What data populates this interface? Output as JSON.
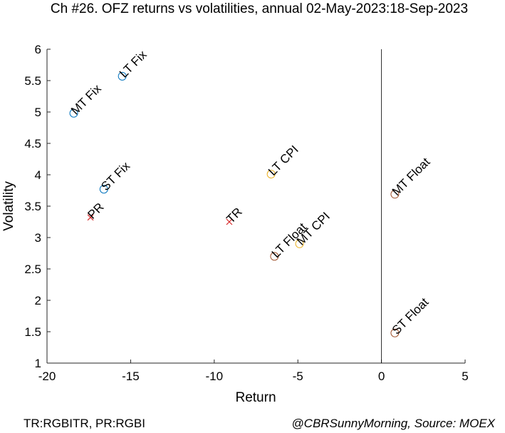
{
  "chart_data": {
    "type": "scatter",
    "title": "Ch #26. OFZ returns vs volatilities, annual 02-May-2023:18-Sep-2023",
    "xlabel": "Return",
    "ylabel": "Volatility",
    "xlim": [
      -20,
      5
    ],
    "ylim": [
      1,
      6
    ],
    "xticks": [
      "-20",
      "-15",
      "-10",
      "-5",
      "0",
      "5"
    ],
    "yticks": [
      "1",
      "1.5",
      "2",
      "2.5",
      "3",
      "3.5",
      "4",
      "4.5",
      "5",
      "5.5",
      "6"
    ],
    "grid": false,
    "reference_line_x": 0,
    "points": [
      {
        "label": "LT Fix",
        "x": -15.5,
        "y": 5.57,
        "marker": "circle",
        "color": "#0072BD"
      },
      {
        "label": "MT Fix",
        "x": -18.4,
        "y": 4.98,
        "marker": "circle",
        "color": "#0072BD"
      },
      {
        "label": "ST Fix",
        "x": -16.6,
        "y": 3.77,
        "marker": "circle",
        "color": "#0072BD"
      },
      {
        "label": "PR",
        "x": -17.4,
        "y": 3.32,
        "marker": "cross",
        "color": "#D62728"
      },
      {
        "label": "TR",
        "x": -9.1,
        "y": 3.25,
        "marker": "cross",
        "color": "#D62728"
      },
      {
        "label": "LT CPI",
        "x": -6.6,
        "y": 4.01,
        "marker": "circle",
        "color": "#EDB120"
      },
      {
        "label": "MT CPI",
        "x": -4.9,
        "y": 2.9,
        "marker": "circle",
        "color": "#EDB120"
      },
      {
        "label": "LT Float",
        "x": -6.4,
        "y": 2.7,
        "marker": "circle",
        "color": "#A0522D"
      },
      {
        "label": "MT Float",
        "x": 0.8,
        "y": 3.69,
        "marker": "circle",
        "color": "#A0522D"
      },
      {
        "label": "ST Float",
        "x": 0.8,
        "y": 1.48,
        "marker": "circle",
        "color": "#A0522D"
      }
    ]
  },
  "footer": {
    "left": "TR:RGBITR, PR:RGBI",
    "right": "@CBRSunnyMorning, Source: MOEX"
  }
}
